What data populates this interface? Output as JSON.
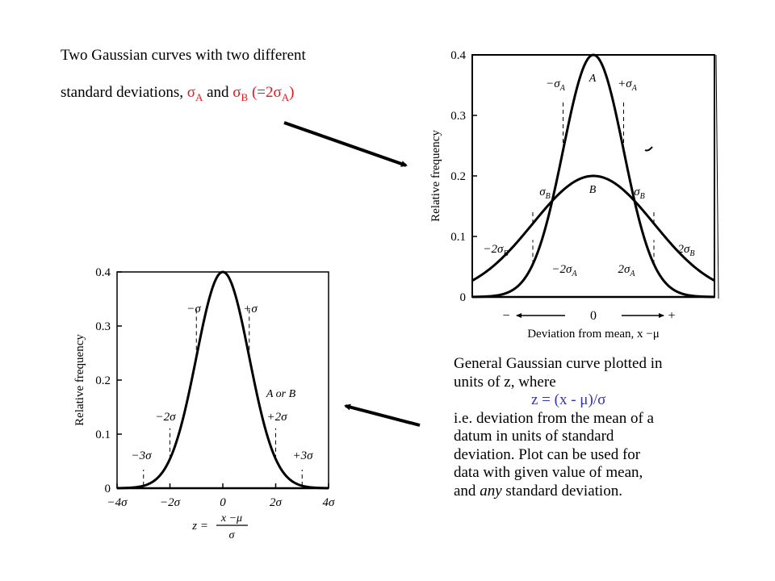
{
  "heading": {
    "line1": "Two Gaussian curves with two different",
    "line2_prefix": "standard deviations, ",
    "sigma_a": "σ",
    "sub_a": "A",
    "and": " and ",
    "sigma_b": "σ",
    "sub_b": "B",
    "paren": " (=2σ",
    "sub_a2": "A",
    "paren_close": ")"
  },
  "explanation": {
    "line1": "General Gaussian curve plotted in",
    "line2": "units of z, where",
    "formula": "z  =  (x - μ)/σ",
    "line4": "i.e. deviation from the mean of a",
    "line5": "datum in units of standard",
    "line6": "deviation. Plot can be used for",
    "line7_prefix": "data with given value of mean,",
    "line8_and": "and ",
    "line8_any": "any",
    "line8_rest": " standard deviation."
  },
  "colors": {
    "text": "#000000",
    "red": "#e8141b",
    "formula": "#3535a8"
  },
  "chart_data": [
    {
      "type": "line",
      "ylabel": "Relative frequency",
      "xlabel": "Deviation from mean, x −μ",
      "yticks": [
        "0",
        "0.1",
        "0.2",
        "0.3",
        "0.4"
      ],
      "ylim": [
        0,
        0.4
      ],
      "xlim": [
        -4,
        4
      ],
      "x_axis_labels": {
        "left": "−",
        "center": "0",
        "right": "+"
      },
      "series": [
        {
          "name": "A",
          "sigma": 1,
          "peak": 0.4
        },
        {
          "name": "B",
          "sigma": 2,
          "peak": 0.2
        }
      ],
      "annotations": {
        "minus_sigma_a": "−σ",
        "plus_sigma_a": "+σ",
        "sigma_a_sub": "A",
        "sigma_b_left": "σ",
        "sigma_b_right": "σ",
        "sigma_b_sub": "B",
        "minus_2sigma_b": "−2σ",
        "plus_2sigma_b": "2σ",
        "minus_2sigma_a": "−2σ",
        "plus_2sigma_a": "2σ"
      },
      "grid": false
    },
    {
      "type": "line",
      "ylabel": "Relative frequency",
      "xlabel_numer": "x −μ",
      "xlabel_prefix": "z = ",
      "xlabel_denom": "σ",
      "yticks": [
        "0",
        "0.1",
        "0.2",
        "0.3",
        "0.4"
      ],
      "xticks": [
        "−4σ",
        "−2σ",
        "0",
        "2σ",
        "4σ"
      ],
      "ylim": [
        0,
        0.4
      ],
      "xlim": [
        -4,
        4
      ],
      "series": [
        {
          "name": "A or B",
          "sigma": 1,
          "peak": 0.4
        }
      ],
      "annotations": {
        "minus_sigma": "−σ",
        "plus_sigma": "+σ",
        "minus_2sigma": "−2σ",
        "plus_2sigma": "+2σ",
        "minus_3sigma": "−3σ",
        "plus_3sigma": "+3σ",
        "series_label": "A or B"
      },
      "grid": false
    }
  ]
}
